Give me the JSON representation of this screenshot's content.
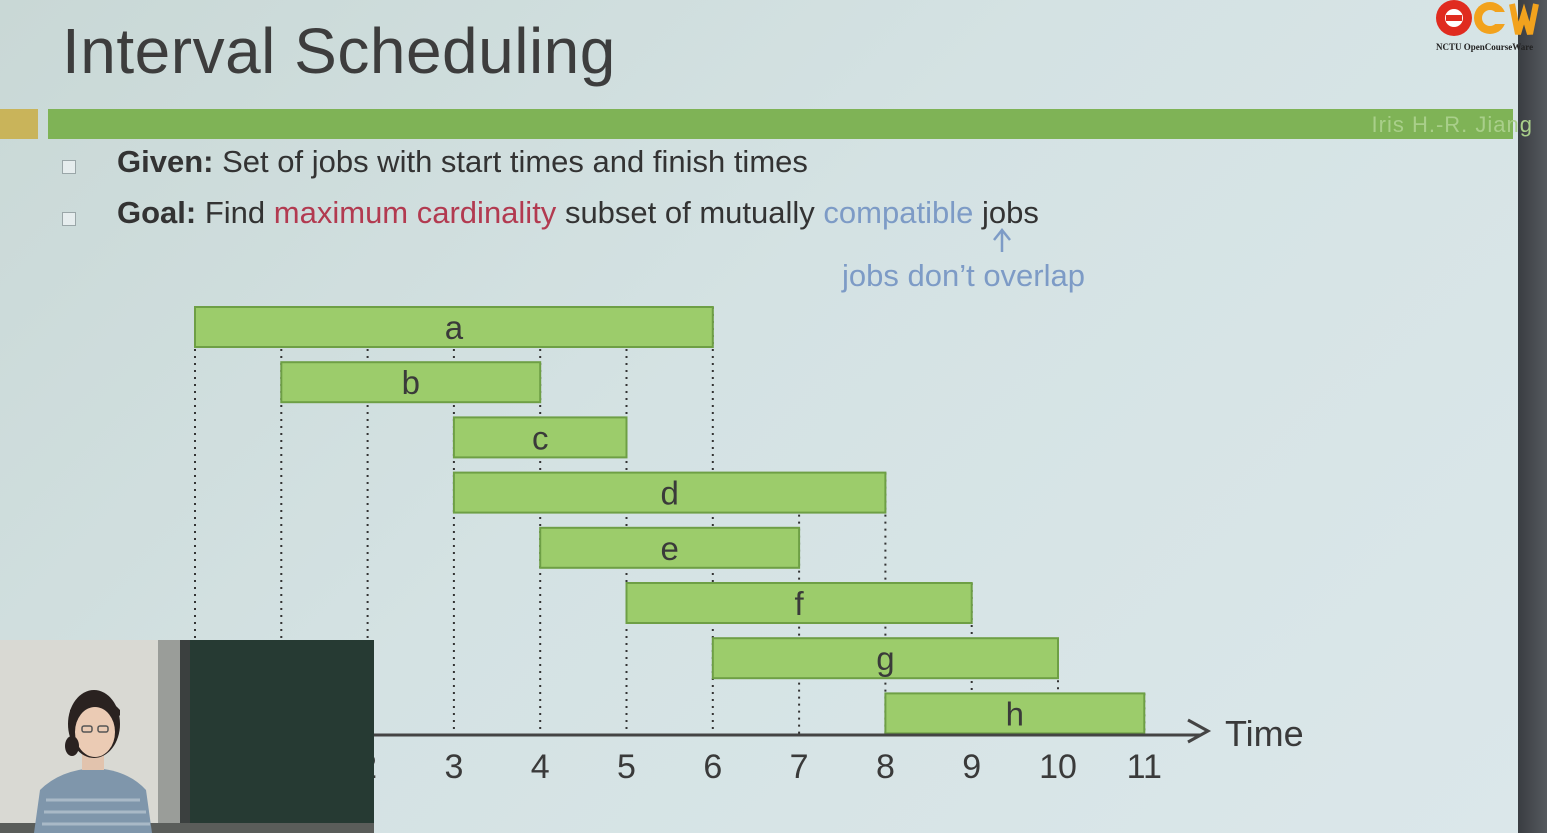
{
  "title": "Interval Scheduling",
  "author": "Iris H.-R. Jiang",
  "logo": {
    "text": "OCW",
    "subtext": "NCTU OpenCourseWare"
  },
  "bullets": [
    {
      "label": "Given:",
      "text": "Set of jobs with start times and finish times"
    },
    {
      "label": "Goal:",
      "pre": "Find",
      "highlight": "maximum cardinality",
      "mid": "subset of mutually",
      "highlight2": "compatible",
      "post": "jobs"
    }
  ],
  "annotation": "jobs don’t overlap",
  "axis": {
    "label": "Time",
    "ticks_visible": [
      "3",
      "4",
      "5",
      "6",
      "7",
      "8",
      "9",
      "10",
      "11"
    ],
    "partial_tick": "2"
  },
  "jobs": [
    {
      "name": "a",
      "start": 0,
      "finish": 6
    },
    {
      "name": "b",
      "start": 1,
      "finish": 4
    },
    {
      "name": "c",
      "start": 3,
      "finish": 5
    },
    {
      "name": "d",
      "start": 3,
      "finish": 8
    },
    {
      "name": "e",
      "start": 4,
      "finish": 7
    },
    {
      "name": "f",
      "start": 5,
      "finish": 9
    },
    {
      "name": "g",
      "start": 6,
      "finish": 10
    },
    {
      "name": "h",
      "start": 8,
      "finish": 11
    }
  ],
  "colors": {
    "job_fill": "#9ccc6b",
    "job_stroke": "#6e9f45",
    "accent_red": "#b23a50",
    "accent_blue": "#7d9bc6",
    "bar_green": "#7fb356"
  }
}
